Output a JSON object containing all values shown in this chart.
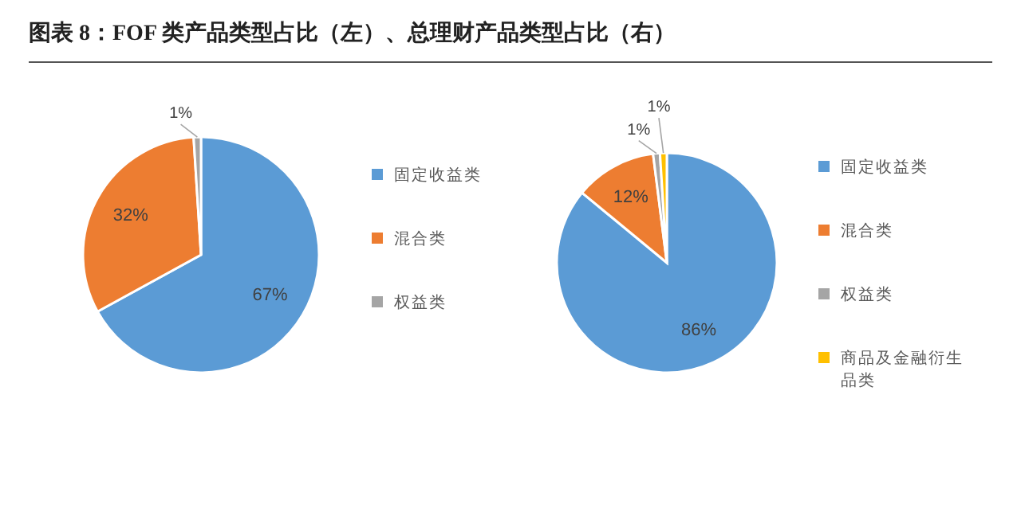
{
  "chart_data": [
    {
      "type": "pie",
      "title": "图表 8：FOF 类产品类型占比（左）、总理财产品类型占比（右）",
      "categories": [
        "固定收益类",
        "混合类",
        "权益类"
      ],
      "values": [
        67,
        32,
        1
      ],
      "colors": [
        "#5b9bd5",
        "#ed7d31",
        "#a5a5a5"
      ],
      "value_labels": [
        "67%",
        "32%",
        "1%"
      ],
      "legend": "right"
    },
    {
      "type": "pie",
      "categories": [
        "固定收益类",
        "混合类",
        "权益类",
        "商品及金融衍生品类"
      ],
      "values": [
        86,
        12,
        1,
        1
      ],
      "colors": [
        "#5b9bd5",
        "#ed7d31",
        "#a5a5a5",
        "#ffc000"
      ],
      "value_labels": [
        "86%",
        "12%",
        "1%",
        "1%"
      ],
      "legend": "right"
    }
  ]
}
